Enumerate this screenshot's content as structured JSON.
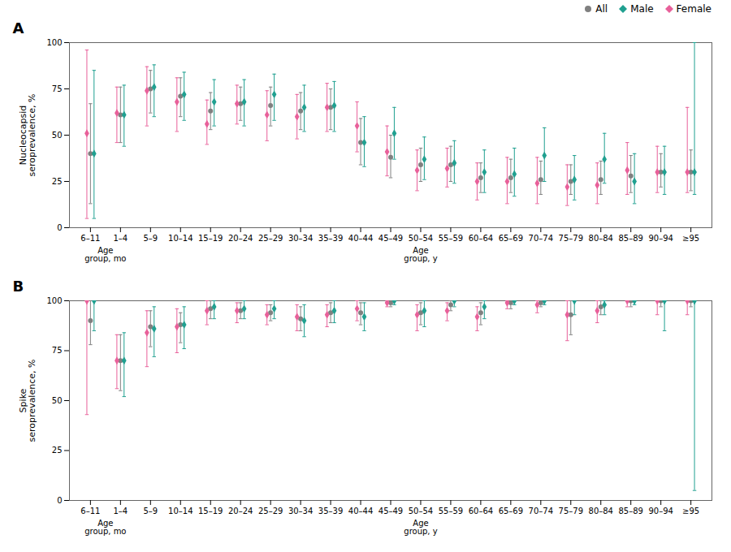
{
  "chart_data": [
    {
      "type": "errorbar",
      "title": "A",
      "ylabel": "Nucleocapsid\nseroprevalence, %",
      "categories": [
        "6–11",
        "1–4",
        "5–9",
        "10–14",
        "15–19",
        "20–24",
        "25–29",
        "30–34",
        "35–39",
        "40–44",
        "45–49",
        "50–54",
        "55–59",
        "60–64",
        "65–69",
        "70–74",
        "75–79",
        "80–84",
        "85–89",
        "90–94",
        "≥95"
      ],
      "series": [
        {
          "name": "All",
          "color": "#808080",
          "marker": "circle",
          "values": [
            40,
            61,
            75,
            71,
            63,
            67,
            66,
            63,
            65,
            46,
            38,
            34,
            34,
            27,
            27,
            26,
            25,
            26,
            28,
            30,
            30
          ],
          "lo": [
            13,
            46,
            62,
            60,
            53,
            58,
            55,
            53,
            53,
            34,
            27,
            25,
            25,
            19,
            19,
            18,
            18,
            18,
            19,
            22,
            20
          ],
          "hi": [
            67,
            76,
            85,
            81,
            73,
            76,
            76,
            73,
            75,
            59,
            50,
            43,
            44,
            35,
            37,
            36,
            34,
            36,
            39,
            40,
            42
          ]
        },
        {
          "name": "Male",
          "color": "#20a090",
          "marker": "diamond",
          "values": [
            40,
            61,
            76,
            72,
            68,
            68,
            72,
            65,
            66,
            46,
            51,
            37,
            35,
            30,
            29,
            39,
            26,
            37,
            25,
            30,
            30
          ],
          "lo": [
            5,
            44,
            60,
            58,
            55,
            55,
            58,
            52,
            52,
            33,
            37,
            26,
            24,
            19,
            17,
            25,
            15,
            24,
            13,
            18,
            18
          ],
          "hi": [
            85,
            77,
            88,
            84,
            80,
            80,
            83,
            77,
            79,
            60,
            65,
            49,
            47,
            42,
            43,
            54,
            39,
            51,
            40,
            44,
            100
          ]
        },
        {
          "name": "Female",
          "color": "#e8609a",
          "marker": "diamond",
          "values": [
            51,
            62,
            74,
            68,
            56,
            67,
            61,
            60,
            65,
            55,
            41,
            31,
            32,
            25,
            25,
            24,
            22,
            23,
            31,
            30,
            30
          ],
          "lo": [
            5,
            46,
            55,
            52,
            45,
            56,
            47,
            48,
            52,
            41,
            28,
            20,
            22,
            15,
            13,
            13,
            12,
            13,
            18,
            19,
            19
          ],
          "hi": [
            96,
            76,
            87,
            81,
            69,
            77,
            74,
            72,
            78,
            68,
            55,
            42,
            43,
            35,
            38,
            38,
            34,
            35,
            46,
            44,
            65
          ]
        }
      ],
      "annotations": [
        {
          "text": "Age\ngroup, mo",
          "from": "6–11",
          "to": "1–4"
        },
        {
          "text": "Age\ngroup, y",
          "from": "5–9",
          "to": "≥95"
        }
      ],
      "ylim": [
        0,
        100
      ],
      "yticks": [
        0,
        25,
        50,
        75,
        100
      ],
      "grid": false,
      "legend": "upper right"
    },
    {
      "type": "errorbar",
      "title": "B",
      "ylabel": "Spike\nseroprevalence, %",
      "categories": [
        "6–11",
        "1–4",
        "5–9",
        "10–14",
        "15–19",
        "20–24",
        "25–29",
        "30–34",
        "35–39",
        "40–44",
        "45–49",
        "50–54",
        "55–59",
        "60–64",
        "65–69",
        "70–74",
        "75–79",
        "80–84",
        "85–89",
        "90–94",
        "≥95"
      ],
      "series": [
        {
          "name": "All",
          "color": "#808080",
          "marker": "circle",
          "values": [
            90,
            70,
            87,
            88,
            96,
            95,
            94,
            91,
            94,
            94,
            99,
            94,
            98,
            94,
            99,
            99,
            93,
            97,
            100,
            100,
            100
          ],
          "lo": [
            78,
            55,
            77,
            79,
            91,
            91,
            90,
            85,
            89,
            88,
            97,
            88,
            95,
            88,
            96,
            97,
            83,
            93,
            97,
            97,
            97
          ],
          "hi": [
            100,
            83,
            95,
            94,
            100,
            99,
            98,
            97,
            99,
            99,
            100,
            99,
            100,
            99,
            100,
            100,
            100,
            100,
            100,
            100,
            100
          ]
        },
        {
          "name": "Male",
          "color": "#20a090",
          "marker": "diamond",
          "values": [
            100,
            70,
            86,
            88,
            97,
            96,
            96,
            90,
            95,
            92,
            100,
            95,
            100,
            97,
            100,
            100,
            100,
            98,
            100,
            100,
            100
          ],
          "lo": [
            85,
            52,
            72,
            76,
            91,
            91,
            91,
            82,
            89,
            85,
            98,
            87,
            97,
            91,
            98,
            98,
            93,
            93,
            98,
            85,
            5
          ],
          "hi": [
            100,
            84,
            97,
            97,
            100,
            100,
            100,
            98,
            100,
            99,
            100,
            100,
            100,
            100,
            100,
            100,
            100,
            100,
            100,
            100,
            100
          ]
        },
        {
          "name": "Female",
          "color": "#e8609a",
          "marker": "diamond",
          "values": [
            100,
            70,
            84,
            87,
            95,
            95,
            93,
            92,
            93,
            96,
            99,
            93,
            95,
            92,
            99,
            98,
            93,
            95,
            100,
            100,
            100
          ],
          "lo": [
            43,
            56,
            67,
            74,
            88,
            89,
            88,
            85,
            87,
            90,
            97,
            85,
            90,
            85,
            96,
            94,
            80,
            89,
            97,
            93,
            93
          ],
          "hi": [
            100,
            83,
            95,
            96,
            100,
            99,
            98,
            98,
            98,
            100,
            100,
            98,
            99,
            97,
            100,
            100,
            100,
            100,
            100,
            100,
            100
          ]
        }
      ],
      "annotations": [
        {
          "text": "Age\ngroup, mo",
          "from": "6–11",
          "to": "1–4"
        },
        {
          "text": "Age\ngroup, y",
          "from": "5–9",
          "to": "≥95"
        }
      ],
      "ylim": [
        0,
        100
      ],
      "yticks": [
        0,
        25,
        50,
        75,
        100
      ],
      "grid": false
    }
  ]
}
